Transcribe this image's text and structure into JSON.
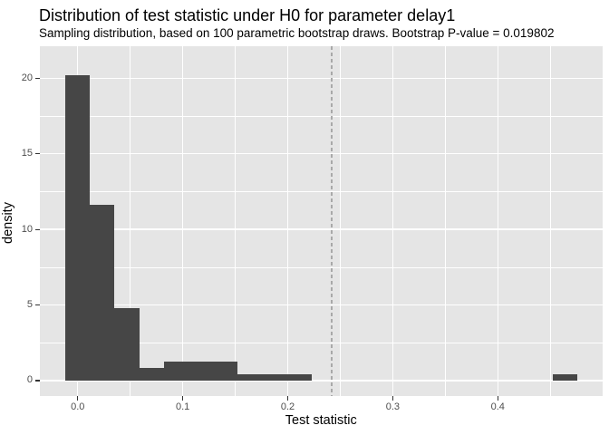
{
  "chart_data": {
    "type": "bar",
    "subtype": "histogram",
    "title": "Distribution of test statistic under H0 for parameter delay1",
    "subtitle": "Sampling distribution, based on 100 parametric bootstrap draws. Bootstrap P-value = 0.019802",
    "xlabel": "Test statistic",
    "ylabel": "density",
    "n_bootstrap_draws": 100,
    "bootstrap_p_value": 0.019802,
    "bars": [
      {
        "x0": -0.012,
        "x1": 0.0115,
        "density": 20.2
      },
      {
        "x0": 0.0115,
        "x1": 0.035,
        "density": 11.6
      },
      {
        "x0": 0.035,
        "x1": 0.0585,
        "density": 4.8
      },
      {
        "x0": 0.0585,
        "x1": 0.082,
        "density": 0.85
      },
      {
        "x0": 0.082,
        "x1": 0.1055,
        "density": 1.25
      },
      {
        "x0": 0.1055,
        "x1": 0.129,
        "density": 1.25
      },
      {
        "x0": 0.129,
        "x1": 0.1525,
        "density": 1.25
      },
      {
        "x0": 0.1525,
        "x1": 0.176,
        "density": 0.4
      },
      {
        "x0": 0.176,
        "x1": 0.1995,
        "density": 0.4
      },
      {
        "x0": 0.1995,
        "x1": 0.223,
        "density": 0.4
      },
      {
        "x0": 0.4525,
        "x1": 0.476,
        "density": 0.4
      }
    ],
    "vline": {
      "x": 0.242,
      "style": "dashed",
      "color": "#a9a9a9"
    },
    "x_ticks": [
      0.0,
      0.1,
      0.2,
      0.3,
      0.4
    ],
    "x_tick_labels": [
      "0.0",
      "0.1",
      "0.2",
      "0.3",
      "0.4"
    ],
    "x_minor_gridlines": [
      0.05,
      0.15,
      0.25,
      0.35,
      0.45
    ],
    "y_ticks": [
      0,
      5,
      10,
      15,
      20
    ],
    "y_tick_labels": [
      "0",
      "5",
      "10",
      "15",
      "20"
    ],
    "y_minor_gridlines": [
      2.5,
      7.5,
      12.5,
      17.5
    ],
    "xlim": [
      -0.0365,
      0.4999
    ],
    "ylim": [
      -1.02,
      22.12
    ],
    "grid": true,
    "legend": "none",
    "colors": {
      "bar_fill": "#464646",
      "panel_background": "#e5e5e5",
      "gridline": "#ffffff",
      "tick_label": "#4d4d4d",
      "tick_mark": "#333333",
      "title_text": "#000000"
    }
  }
}
